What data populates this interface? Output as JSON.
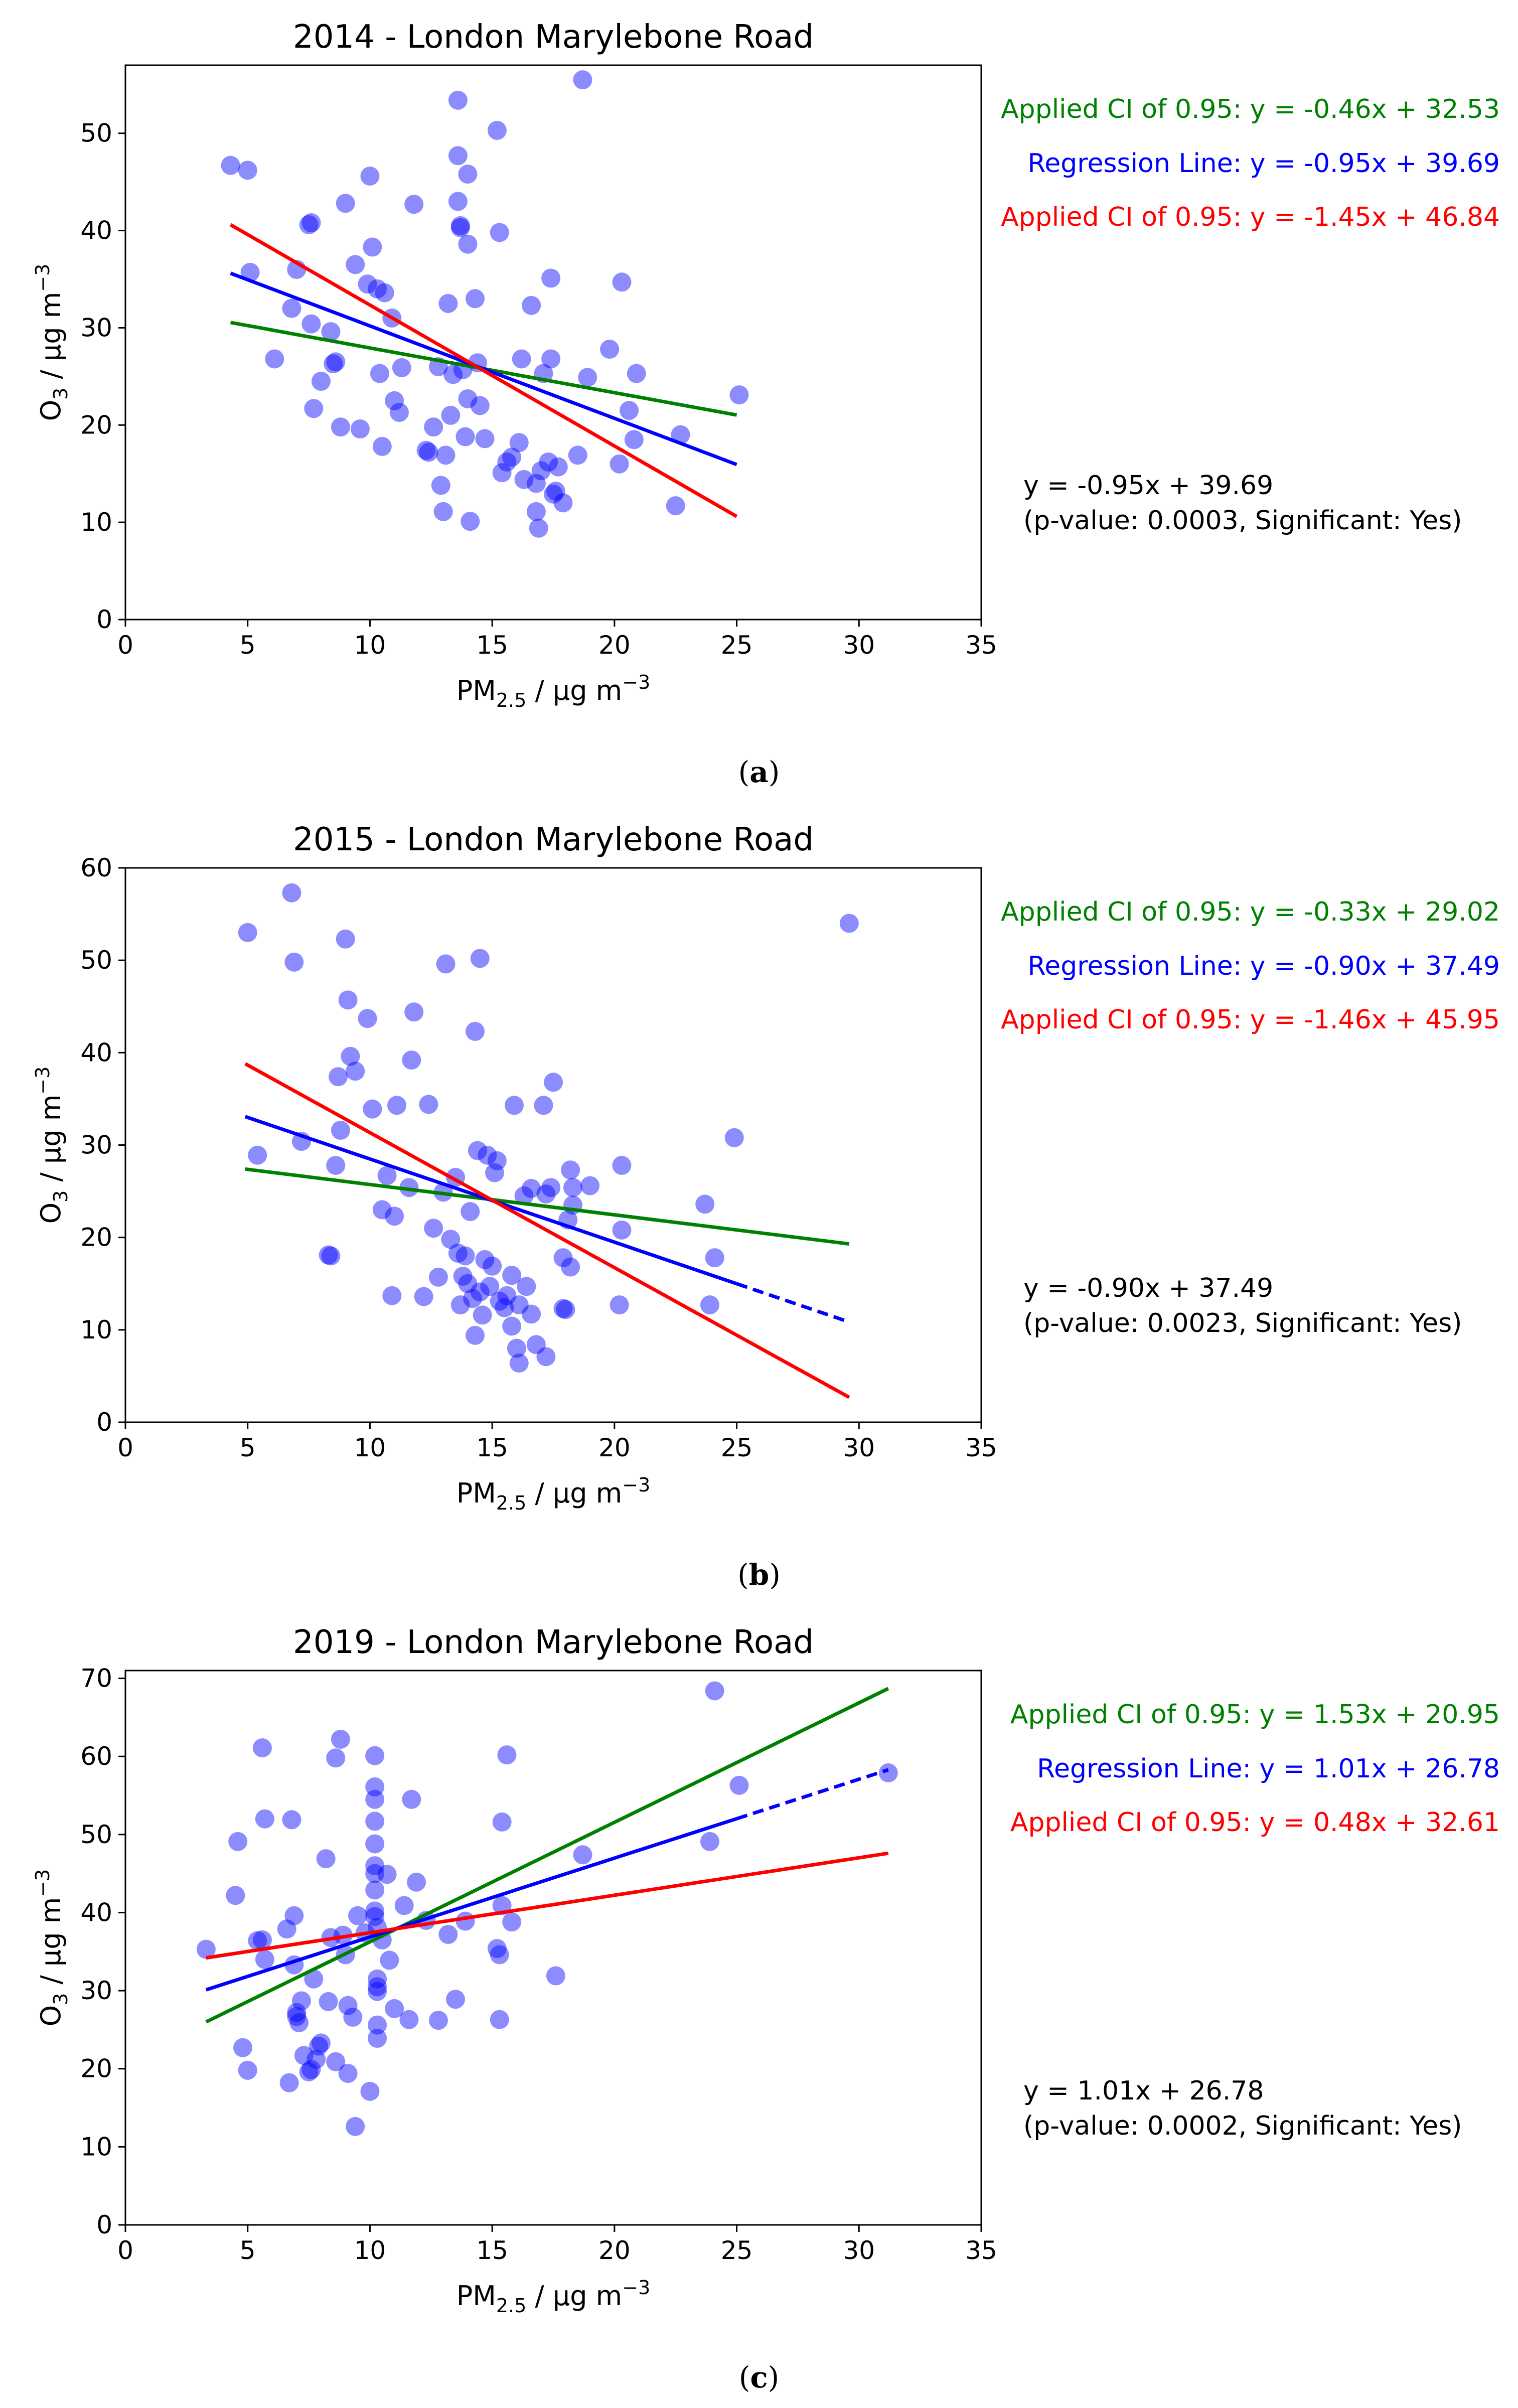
{
  "colors": {
    "green": "#008000",
    "blue": "#0000ff",
    "red": "#ff0000",
    "point": "#0000ff",
    "text": "#000000"
  },
  "chart_data": [
    {
      "type": "scatter",
      "panel_label": "a",
      "title": "2014 - London Marylebone Road",
      "xlabel": "PM",
      "xlabel_sub": "2.5",
      "xlabel_unit": " / µg m",
      "xlabel_sup": "−3",
      "ylabel": "O",
      "ylabel_sub": "3",
      "ylabel_unit": " / µg m",
      "ylabel_sup": "−3",
      "xlim": [
        0,
        35
      ],
      "ylim": [
        0,
        57
      ],
      "xticks": [
        0,
        5,
        10,
        15,
        20,
        25,
        30,
        35
      ],
      "yticks": [
        0,
        10,
        20,
        30,
        40,
        50
      ],
      "points": [
        [
          4.3,
          46.7
        ],
        [
          5.0,
          46.2
        ],
        [
          5.1,
          35.7
        ],
        [
          6.1,
          26.8
        ],
        [
          6.8,
          32.0
        ],
        [
          7.0,
          36.0
        ],
        [
          7.5,
          40.6
        ],
        [
          7.6,
          40.8
        ],
        [
          7.6,
          30.4
        ],
        [
          7.7,
          21.7
        ],
        [
          8.0,
          24.5
        ],
        [
          8.4,
          29.6
        ],
        [
          8.5,
          26.3
        ],
        [
          8.6,
          26.5
        ],
        [
          8.8,
          19.8
        ],
        [
          9.0,
          42.8
        ],
        [
          9.4,
          36.5
        ],
        [
          9.6,
          19.6
        ],
        [
          9.9,
          34.5
        ],
        [
          10.0,
          45.6
        ],
        [
          10.1,
          38.3
        ],
        [
          10.3,
          34.0
        ],
        [
          10.4,
          25.3
        ],
        [
          10.5,
          17.8
        ],
        [
          10.6,
          33.6
        ],
        [
          10.9,
          31.0
        ],
        [
          11.0,
          22.5
        ],
        [
          11.2,
          21.3
        ],
        [
          11.3,
          25.9
        ],
        [
          11.8,
          42.7
        ],
        [
          12.3,
          17.4
        ],
        [
          12.4,
          17.2
        ],
        [
          12.6,
          19.8
        ],
        [
          12.8,
          26.0
        ],
        [
          12.9,
          13.8
        ],
        [
          13.0,
          11.1
        ],
        [
          13.1,
          16.9
        ],
        [
          13.2,
          32.5
        ],
        [
          13.3,
          21.0
        ],
        [
          13.4,
          25.2
        ],
        [
          13.6,
          53.4
        ],
        [
          13.6,
          47.7
        ],
        [
          13.6,
          43.0
        ],
        [
          13.7,
          40.5
        ],
        [
          13.7,
          40.3
        ],
        [
          13.8,
          25.7
        ],
        [
          13.9,
          18.8
        ],
        [
          14.0,
          45.8
        ],
        [
          14.0,
          38.6
        ],
        [
          14.0,
          22.7
        ],
        [
          14.1,
          10.1
        ],
        [
          14.3,
          33.0
        ],
        [
          14.4,
          26.4
        ],
        [
          14.5,
          22.0
        ],
        [
          14.7,
          18.6
        ],
        [
          15.2,
          50.3
        ],
        [
          15.3,
          39.8
        ],
        [
          15.4,
          15.1
        ],
        [
          15.6,
          16.2
        ],
        [
          15.8,
          16.7
        ],
        [
          16.1,
          18.2
        ],
        [
          16.2,
          26.8
        ],
        [
          16.3,
          14.4
        ],
        [
          16.6,
          32.3
        ],
        [
          16.8,
          14.0
        ],
        [
          16.8,
          11.1
        ],
        [
          16.9,
          9.4
        ],
        [
          17.0,
          15.3
        ],
        [
          17.1,
          25.3
        ],
        [
          17.3,
          16.2
        ],
        [
          17.4,
          35.1
        ],
        [
          17.4,
          26.8
        ],
        [
          17.5,
          12.9
        ],
        [
          17.6,
          13.2
        ],
        [
          17.7,
          15.7
        ],
        [
          17.9,
          12.0
        ],
        [
          18.5,
          16.9
        ],
        [
          18.7,
          55.5
        ],
        [
          18.9,
          24.9
        ],
        [
          19.8,
          27.8
        ],
        [
          20.2,
          16.0
        ],
        [
          20.3,
          34.7
        ],
        [
          20.6,
          21.5
        ],
        [
          20.8,
          18.5
        ],
        [
          20.9,
          25.3
        ],
        [
          22.5,
          11.7
        ],
        [
          22.7,
          19.0
        ],
        [
          25.1,
          23.1
        ]
      ],
      "lines": [
        {
          "name": "upper_ci",
          "x": [
            4.3,
            25.0
          ],
          "y": [
            30.55,
            21.03
          ],
          "dash_from": null
        },
        {
          "name": "regression",
          "x": [
            4.3,
            25.0
          ],
          "y": [
            35.61,
            15.94
          ],
          "dash_from": null
        },
        {
          "name": "lower_ci",
          "x": [
            4.3,
            25.0
          ],
          "y": [
            40.6,
            10.6
          ],
          "dash_from": null
        }
      ],
      "annotations": {
        "upper": "Applied CI of 0.95: y = -0.46x + 32.53",
        "regression": "Regression Line: y = -0.95x + 39.69",
        "lower": "Applied CI of 0.95: y = -1.45x + 46.84",
        "equation": "y = -0.95x + 39.69",
        "stats": "(p-value: 0.0003, Significant: Yes)"
      }
    },
    {
      "type": "scatter",
      "panel_label": "b",
      "title": "2015 - London Marylebone Road",
      "xlabel": "PM",
      "xlabel_sub": "2.5",
      "xlabel_unit": " / µg m",
      "xlabel_sup": "−3",
      "ylabel": "O",
      "ylabel_sub": "3",
      "ylabel_unit": " / µg m",
      "ylabel_sup": "−3",
      "xlim": [
        0,
        35
      ],
      "ylim": [
        0,
        60
      ],
      "xticks": [
        0,
        5,
        10,
        15,
        20,
        25,
        30,
        35
      ],
      "yticks": [
        0,
        10,
        20,
        30,
        40,
        50,
        60
      ],
      "points": [
        [
          5.0,
          53.0
        ],
        [
          5.4,
          28.9
        ],
        [
          6.8,
          57.3
        ],
        [
          6.9,
          49.8
        ],
        [
          7.2,
          30.4
        ],
        [
          8.3,
          18.1
        ],
        [
          8.4,
          18.0
        ],
        [
          8.6,
          27.8
        ],
        [
          8.7,
          37.4
        ],
        [
          8.8,
          31.6
        ],
        [
          9.0,
          52.3
        ],
        [
          9.1,
          45.7
        ],
        [
          9.2,
          39.6
        ],
        [
          9.4,
          38.0
        ],
        [
          9.9,
          43.7
        ],
        [
          10.1,
          33.9
        ],
        [
          10.5,
          23.0
        ],
        [
          10.7,
          26.7
        ],
        [
          10.9,
          13.7
        ],
        [
          11.0,
          22.3
        ],
        [
          11.1,
          34.3
        ],
        [
          11.6,
          25.4
        ],
        [
          11.7,
          39.2
        ],
        [
          11.8,
          44.4
        ],
        [
          12.2,
          13.6
        ],
        [
          12.4,
          34.4
        ],
        [
          12.6,
          21.0
        ],
        [
          12.8,
          15.7
        ],
        [
          13.0,
          24.9
        ],
        [
          13.1,
          49.6
        ],
        [
          13.3,
          19.8
        ],
        [
          13.5,
          26.5
        ],
        [
          13.6,
          18.3
        ],
        [
          13.7,
          12.7
        ],
        [
          13.8,
          15.8
        ],
        [
          13.9,
          18.0
        ],
        [
          14.0,
          15.0
        ],
        [
          14.1,
          22.8
        ],
        [
          14.2,
          13.4
        ],
        [
          14.3,
          9.4
        ],
        [
          14.3,
          42.3
        ],
        [
          14.4,
          29.4
        ],
        [
          14.5,
          50.2
        ],
        [
          14.5,
          14.1
        ],
        [
          14.6,
          11.6
        ],
        [
          14.7,
          17.6
        ],
        [
          14.8,
          28.9
        ],
        [
          14.9,
          14.7
        ],
        [
          15.0,
          16.9
        ],
        [
          15.1,
          27.0
        ],
        [
          15.2,
          28.3
        ],
        [
          15.3,
          13.1
        ],
        [
          15.5,
          12.4
        ],
        [
          15.6,
          13.7
        ],
        [
          15.8,
          10.4
        ],
        [
          15.8,
          15.9
        ],
        [
          15.9,
          34.3
        ],
        [
          16.0,
          8.0
        ],
        [
          16.1,
          12.7
        ],
        [
          16.1,
          6.4
        ],
        [
          16.3,
          24.5
        ],
        [
          16.4,
          14.7
        ],
        [
          16.6,
          25.3
        ],
        [
          16.6,
          11.7
        ],
        [
          16.8,
          8.4
        ],
        [
          17.1,
          34.3
        ],
        [
          17.2,
          7.1
        ],
        [
          17.2,
          24.7
        ],
        [
          17.4,
          25.4
        ],
        [
          17.5,
          36.8
        ],
        [
          17.9,
          17.8
        ],
        [
          17.9,
          12.3
        ],
        [
          18.0,
          12.2
        ],
        [
          18.1,
          21.9
        ],
        [
          18.2,
          27.3
        ],
        [
          18.2,
          16.8
        ],
        [
          18.3,
          25.4
        ],
        [
          18.3,
          23.5
        ],
        [
          19.0,
          25.6
        ],
        [
          20.2,
          12.7
        ],
        [
          20.3,
          27.8
        ],
        [
          20.3,
          20.8
        ],
        [
          23.7,
          23.6
        ],
        [
          23.9,
          12.7
        ],
        [
          24.1,
          17.8
        ],
        [
          24.9,
          30.8
        ],
        [
          29.6,
          54.0
        ]
      ],
      "lines": [
        {
          "name": "upper_ci",
          "x": [
            4.9,
            29.6
          ],
          "y": [
            27.4,
            19.3
          ],
          "dash_from": null
        },
        {
          "name": "regression",
          "x": [
            4.9,
            29.6
          ],
          "y": [
            33.08,
            10.85
          ],
          "dash_from": 25.0
        },
        {
          "name": "lower_ci",
          "x": [
            4.9,
            29.6
          ],
          "y": [
            38.8,
            2.7
          ],
          "dash_from": null
        }
      ],
      "annotations": {
        "upper": "Applied CI of 0.95: y = -0.33x + 29.02",
        "regression": "Regression Line: y = -0.90x + 37.49",
        "lower": "Applied CI of 0.95: y = -1.46x + 45.95",
        "equation": "y = -0.90x + 37.49",
        "stats": "(p-value: 0.0023, Significant: Yes)"
      }
    },
    {
      "type": "scatter",
      "panel_label": "c",
      "title": "2019 - London Marylebone Road",
      "xlabel": "PM",
      "xlabel_sub": "2.5",
      "xlabel_unit": " / µg m",
      "xlabel_sup": "−3",
      "ylabel": "O",
      "ylabel_sub": "3",
      "ylabel_unit": " / µg m",
      "ylabel_sup": "−3",
      "xlim": [
        0,
        35
      ],
      "ylim": [
        0,
        71
      ],
      "xticks": [
        0,
        5,
        10,
        15,
        20,
        25,
        30,
        35
      ],
      "yticks": [
        0,
        10,
        20,
        30,
        40,
        50,
        60,
        70
      ],
      "points": [
        [
          3.3,
          35.3
        ],
        [
          4.5,
          42.2
        ],
        [
          4.6,
          49.1
        ],
        [
          4.8,
          22.7
        ],
        [
          5.0,
          19.8
        ],
        [
          5.4,
          36.4
        ],
        [
          5.6,
          36.5
        ],
        [
          5.6,
          61.1
        ],
        [
          5.7,
          52.0
        ],
        [
          5.7,
          34.0
        ],
        [
          6.6,
          37.9
        ],
        [
          6.7,
          18.2
        ],
        [
          6.8,
          51.9
        ],
        [
          6.9,
          33.3
        ],
        [
          6.9,
          39.6
        ],
        [
          7.0,
          26.7
        ],
        [
          7.0,
          27.2
        ],
        [
          7.1,
          25.9
        ],
        [
          7.2,
          28.7
        ],
        [
          7.3,
          21.7
        ],
        [
          7.5,
          19.6
        ],
        [
          7.6,
          19.9
        ],
        [
          7.7,
          31.5
        ],
        [
          7.8,
          21.2
        ],
        [
          7.9,
          22.9
        ],
        [
          8.0,
          23.3
        ],
        [
          8.2,
          46.9
        ],
        [
          8.3,
          28.6
        ],
        [
          8.4,
          36.8
        ],
        [
          8.6,
          59.8
        ],
        [
          8.6,
          20.9
        ],
        [
          8.8,
          62.2
        ],
        [
          8.9,
          37.1
        ],
        [
          9.0,
          34.6
        ],
        [
          9.1,
          19.4
        ],
        [
          9.1,
          28.1
        ],
        [
          9.3,
          26.6
        ],
        [
          9.4,
          12.6
        ],
        [
          9.5,
          39.6
        ],
        [
          9.8,
          37.4
        ],
        [
          10.0,
          17.1
        ],
        [
          10.2,
          60.1
        ],
        [
          10.2,
          56.1
        ],
        [
          10.2,
          54.5
        ],
        [
          10.2,
          51.7
        ],
        [
          10.2,
          48.8
        ],
        [
          10.2,
          46.0
        ],
        [
          10.2,
          45.0
        ],
        [
          10.2,
          42.9
        ],
        [
          10.2,
          40.2
        ],
        [
          10.2,
          39.5
        ],
        [
          10.3,
          38.1
        ],
        [
          10.3,
          31.5
        ],
        [
          10.3,
          30.5
        ],
        [
          10.3,
          29.9
        ],
        [
          10.3,
          25.6
        ],
        [
          10.3,
          23.9
        ],
        [
          10.5,
          36.5
        ],
        [
          10.7,
          44.9
        ],
        [
          10.8,
          33.9
        ],
        [
          11.0,
          27.7
        ],
        [
          11.4,
          40.9
        ],
        [
          11.6,
          26.3
        ],
        [
          11.7,
          54.5
        ],
        [
          11.9,
          43.9
        ],
        [
          12.3,
          39.0
        ],
        [
          12.8,
          26.2
        ],
        [
          13.2,
          37.2
        ],
        [
          13.5,
          28.9
        ],
        [
          13.9,
          38.9
        ],
        [
          15.2,
          35.4
        ],
        [
          15.3,
          34.6
        ],
        [
          15.3,
          26.3
        ],
        [
          15.4,
          51.6
        ],
        [
          15.4,
          40.9
        ],
        [
          15.6,
          60.2
        ],
        [
          15.8,
          38.8
        ],
        [
          17.6,
          31.9
        ],
        [
          18.7,
          47.4
        ],
        [
          23.9,
          49.1
        ],
        [
          24.1,
          68.4
        ],
        [
          25.1,
          56.3
        ],
        [
          31.2,
          57.9
        ]
      ],
      "lines": [
        {
          "name": "upper_ci",
          "x": [
            3.3,
            31.2
          ],
          "y": [
            26.0,
            68.7
          ],
          "dash_from": null
        },
        {
          "name": "regression",
          "x": [
            3.3,
            31.2
          ],
          "y": [
            30.11,
            58.29
          ],
          "dash_from": 25.0
        },
        {
          "name": "lower_ci",
          "x": [
            3.3,
            31.2
          ],
          "y": [
            34.2,
            47.6
          ],
          "dash_from": null
        }
      ],
      "annotations": {
        "upper": "Applied CI of 0.95: y = 1.53x + 20.95",
        "regression": "Regression Line: y = 1.01x + 26.78",
        "lower": "Applied CI of 0.95: y = 0.48x + 32.61",
        "equation": "y = 1.01x + 26.78",
        "stats": "(p-value: 0.0002, Significant: Yes)"
      }
    }
  ]
}
